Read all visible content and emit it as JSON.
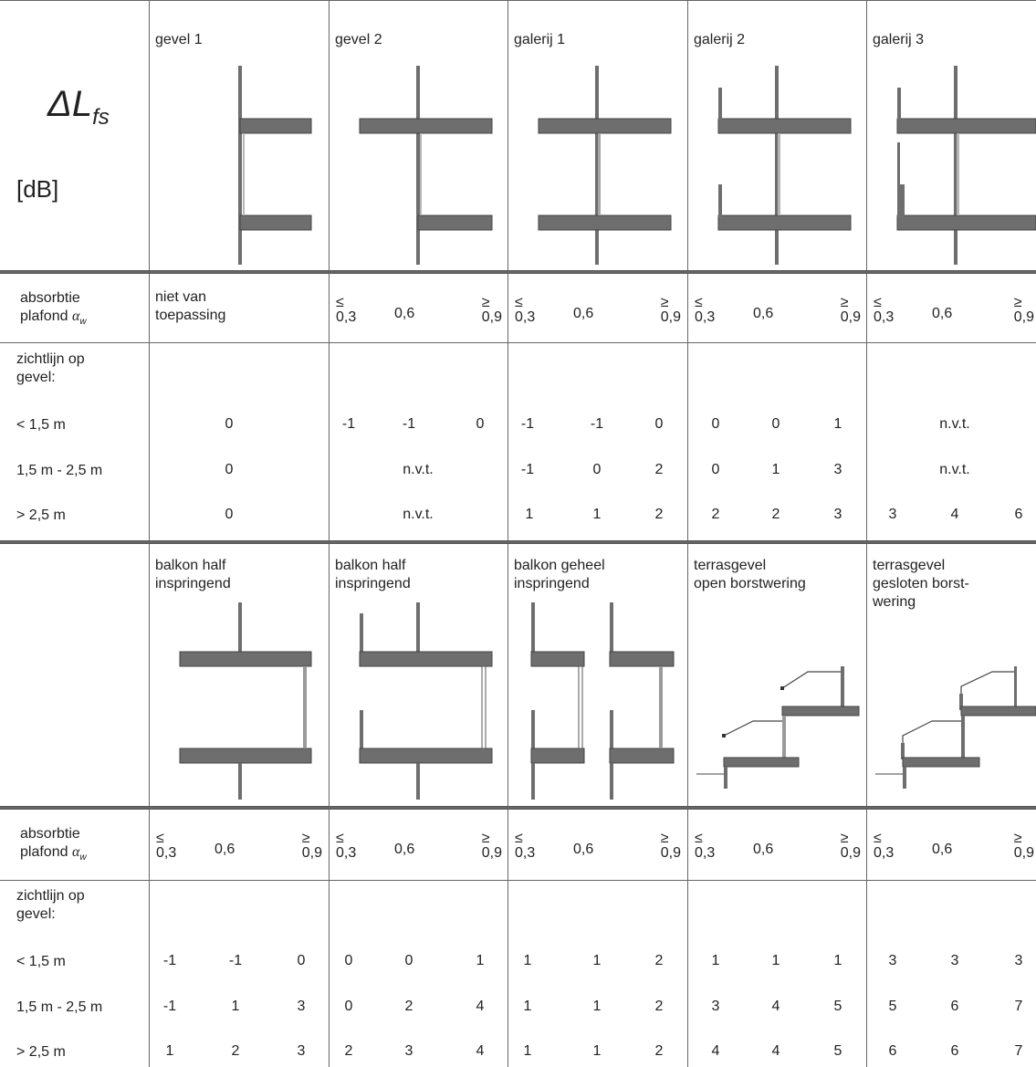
{
  "corner": {
    "symbol": "ΔL",
    "subscript": "fs",
    "unit": "[dB]"
  },
  "top_columns": [
    "gevel 1",
    "gevel 2",
    "galerij 1",
    "galerij 2",
    "galerij 3"
  ],
  "bottom_columns": [
    "balkon half\ninspringend",
    "balkon half\ninspringend",
    "balkon geheel\ninspringend",
    "terrasgevel\nopen borstwering",
    "terrasgevel\ngesloten borst-\nwering"
  ],
  "absorptie_label": {
    "line1": "absorbtie",
    "line2": "plafond",
    "alpha": "α",
    "alpha_sub": "w"
  },
  "absorptie_values": {
    "le": "≤",
    "le_val": "0,3",
    "mid": "0,6",
    "ge": "≥",
    "ge_val": "0,9"
  },
  "not_applicable": "niet van\ntoepassing",
  "zichtlijn_label": "zichtlijn op\ngevel:",
  "row_labels": [
    "< 1,5 m",
    "1,5 m - 2,5 m",
    "> 2,5 m"
  ],
  "nvt": "n.v.t.",
  "top_values": [
    [
      [
        "0"
      ],
      [
        "-1",
        "-1",
        "0"
      ],
      [
        "-1",
        "-1",
        "0"
      ],
      [
        "0",
        "0",
        "1"
      ],
      [
        "n.v.t."
      ]
    ],
    [
      [
        "0"
      ],
      [
        "n.v.t."
      ],
      [
        "-1",
        "0",
        "2"
      ],
      [
        "0",
        "1",
        "3"
      ],
      [
        "n.v.t."
      ]
    ],
    [
      [
        "0"
      ],
      [
        "n.v.t."
      ],
      [
        "1",
        "1",
        "2"
      ],
      [
        "2",
        "2",
        "3"
      ],
      [
        "3",
        "4",
        "6"
      ]
    ]
  ],
  "bottom_values": [
    [
      [
        "-1",
        "-1",
        "0"
      ],
      [
        "0",
        "0",
        "1"
      ],
      [
        "1",
        "1",
        "2"
      ],
      [
        "1",
        "1",
        "1"
      ],
      [
        "3",
        "3",
        "3"
      ]
    ],
    [
      [
        "-1",
        "1",
        "3"
      ],
      [
        "0",
        "2",
        "4"
      ],
      [
        "1",
        "1",
        "2"
      ],
      [
        "3",
        "4",
        "5"
      ],
      [
        "5",
        "6",
        "7"
      ]
    ],
    [
      [
        "1",
        "2",
        "3"
      ],
      [
        "2",
        "3",
        "4"
      ],
      [
        "1",
        "1",
        "2"
      ],
      [
        "4",
        "4",
        "5"
      ],
      [
        "6",
        "6",
        "7"
      ]
    ]
  ],
  "colors": {
    "slab": "#6e6e6e",
    "glass": "#9a9a9a",
    "line": "#555555"
  }
}
